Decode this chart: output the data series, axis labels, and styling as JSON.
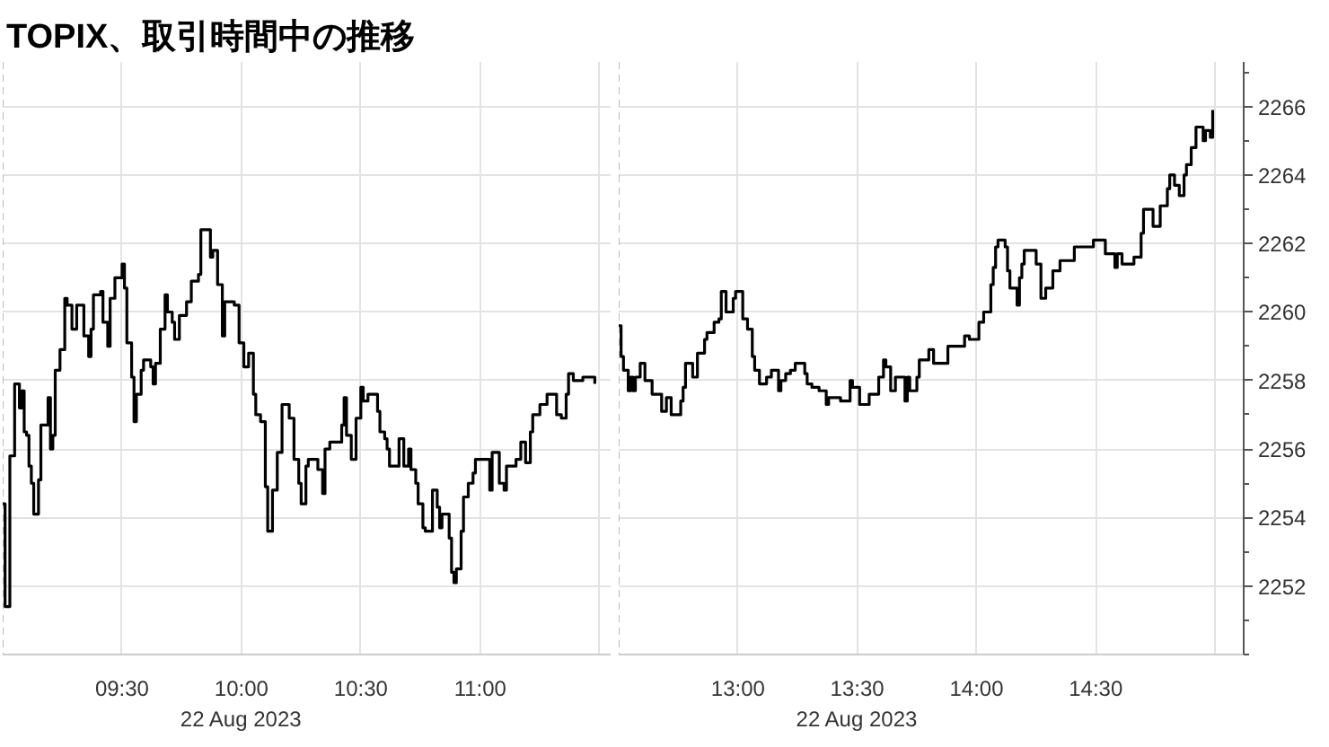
{
  "chart_data": [
    {
      "type": "step",
      "title": "TOPIX、取引時間中の推移",
      "color": "#000000",
      "x": [
        9.0,
        9.01,
        9.03,
        9.05,
        9.07,
        9.08,
        9.09,
        9.1,
        9.11,
        9.12,
        9.13,
        9.15,
        9.16,
        9.19,
        9.2,
        9.21,
        9.22,
        9.24,
        9.26,
        9.27,
        9.29,
        9.31,
        9.34,
        9.36,
        9.37,
        9.38,
        9.41,
        9.42,
        9.44,
        9.45,
        9.47,
        9.5,
        9.51,
        9.52,
        9.54,
        9.55,
        9.56,
        9.58,
        9.59,
        9.62,
        9.63,
        9.64,
        9.66,
        9.68,
        9.69,
        9.71,
        9.72,
        9.74,
        9.77,
        9.79,
        9.82,
        9.83,
        9.87,
        9.88,
        9.9,
        9.92,
        9.93,
        9.97,
        9.99,
        10.01,
        10.03,
        10.05,
        10.06,
        10.08,
        10.1,
        10.11,
        10.13,
        10.15,
        10.17,
        10.2,
        10.22,
        10.24,
        10.25,
        10.27,
        10.28,
        10.32,
        10.34,
        10.35,
        10.37,
        10.42,
        10.43,
        10.44,
        10.46,
        10.48,
        10.5,
        10.51,
        10.53,
        10.57,
        10.58,
        10.6,
        10.61,
        10.62,
        10.66,
        10.68,
        10.7,
        10.71,
        10.73,
        10.74,
        10.76,
        10.77,
        10.8,
        10.82,
        10.83,
        10.84,
        10.87,
        10.88,
        10.89,
        10.9,
        10.92,
        10.93,
        10.95,
        10.97,
        10.98,
        11.04,
        11.05,
        11.08,
        11.1,
        11.11,
        11.15,
        11.17,
        11.19,
        11.21,
        11.22,
        11.25,
        11.28,
        11.32,
        11.34,
        11.36,
        11.37,
        11.39,
        11.43,
        11.48
      ],
      "values": [
        2254.4,
        2251.4,
        2255.8,
        2257.9,
        2257.2,
        2257.7,
        2256.5,
        2256.4,
        2255.5,
        2255.0,
        2254.1,
        2255.1,
        2256.7,
        2257.5,
        2256.0,
        2256.4,
        2258.3,
        2258.9,
        2260.4,
        2260.2,
        2259.5,
        2260.2,
        2259.3,
        2258.7,
        2259.5,
        2260.5,
        2260.6,
        2259.7,
        2259.0,
        2260.4,
        2261.0,
        2261.4,
        2260.7,
        2259.1,
        2258.1,
        2256.8,
        2257.6,
        2258.3,
        2258.6,
        2258.4,
        2257.9,
        2258.5,
        2259.5,
        2260.5,
        2260.0,
        2259.7,
        2259.2,
        2259.9,
        2260.3,
        2260.9,
        2261.1,
        2262.4,
        2261.6,
        2261.8,
        2260.8,
        2259.3,
        2260.3,
        2260.2,
        2259.1,
        2258.4,
        2258.8,
        2257.6,
        2257.0,
        2256.8,
        2254.9,
        2253.6,
        2254.8,
        2255.9,
        2257.3,
        2256.9,
        2255.7,
        2255.0,
        2254.4,
        2255.5,
        2255.7,
        2255.4,
        2254.7,
        2256.0,
        2256.2,
        2256.7,
        2257.5,
        2256.4,
        2255.7,
        2256.9,
        2257.8,
        2257.4,
        2257.6,
        2257.1,
        2256.5,
        2256.3,
        2256.0,
        2255.5,
        2256.3,
        2255.5,
        2256.0,
        2255.4,
        2255.0,
        2254.4,
        2253.7,
        2253.6,
        2254.8,
        2254.3,
        2253.7,
        2254.1,
        2253.4,
        2252.4,
        2252.1,
        2252.5,
        2253.6,
        2254.6,
        2255.0,
        2255.3,
        2255.7,
        2254.8,
        2255.9,
        2255.0,
        2254.8,
        2255.5,
        2255.7,
        2256.2,
        2255.6,
        2256.5,
        2257.0,
        2257.3,
        2257.6,
        2257.0,
        2256.9,
        2257.6,
        2258.2,
        2258.0,
        2258.1,
        2257.9
      ],
      "xlim": [
        9,
        11.55
      ],
      "ylim": [
        2250,
        2267.3
      ],
      "xticks": [
        {
          "value": 9.5,
          "label": "09:30"
        },
        {
          "value": 10,
          "label": "10:00\n22 Aug 2023"
        },
        {
          "value": 10.5,
          "label": "10:30"
        },
        {
          "value": 11,
          "label": "11:00"
        },
        {
          "value": 11.5,
          "label": null
        }
      ],
      "yticks": [
        2252,
        2254,
        2256,
        2258,
        2260,
        2262,
        2264,
        2266
      ],
      "grid": true,
      "tick_labels": "x",
      "ref_lines": [
        {
          "axis": "x",
          "value": 9,
          "color": "#bbbbbb",
          "line_style": "dashed"
        }
      ]
    },
    {
      "type": "step",
      "color": "#000000",
      "x": [
        12.5,
        12.51,
        12.52,
        12.54,
        12.55,
        12.56,
        12.57,
        12.59,
        12.61,
        12.64,
        12.68,
        12.7,
        12.72,
        12.76,
        12.77,
        12.78,
        12.81,
        12.83,
        12.86,
        12.87,
        12.9,
        12.92,
        12.93,
        12.95,
        12.98,
        12.99,
        13.02,
        13.04,
        13.06,
        13.07,
        13.09,
        13.12,
        13.14,
        13.17,
        13.18,
        13.2,
        13.22,
        13.24,
        13.28,
        13.29,
        13.31,
        13.34,
        13.37,
        13.38,
        13.43,
        13.47,
        13.48,
        13.51,
        13.55,
        13.59,
        13.61,
        13.62,
        13.64,
        13.66,
        13.7,
        13.71,
        13.72,
        13.75,
        13.76,
        13.8,
        13.82,
        13.88,
        13.95,
        13.97,
        14.01,
        14.03,
        14.06,
        14.07,
        14.08,
        14.09,
        14.12,
        14.13,
        14.14,
        14.17,
        14.18,
        14.19,
        14.2,
        14.25,
        14.27,
        14.29,
        14.32,
        14.35,
        14.41,
        14.49,
        14.54,
        14.58,
        14.59,
        14.61,
        14.66,
        14.69,
        14.7,
        14.74,
        14.77,
        14.8,
        14.81,
        14.83,
        14.85,
        14.87,
        14.88,
        14.9,
        14.92,
        14.95,
        14.96,
        14.98,
        14.99
      ],
      "values": [
        2259.6,
        2258.7,
        2258.3,
        2257.7,
        2258.1,
        2257.7,
        2258.1,
        2258.5,
        2258.0,
        2257.6,
        2257.1,
        2257.5,
        2257.0,
        2257.4,
        2257.8,
        2258.5,
        2258.1,
        2258.8,
        2259.2,
        2259.4,
        2259.7,
        2259.8,
        2260.6,
        2260.0,
        2260.4,
        2260.6,
        2259.8,
        2259.5,
        2258.7,
        2258.3,
        2257.9,
        2258.1,
        2258.3,
        2257.7,
        2258.0,
        2258.2,
        2258.3,
        2258.5,
        2258.2,
        2257.9,
        2257.8,
        2257.7,
        2257.3,
        2257.5,
        2257.4,
        2258.0,
        2257.8,
        2257.3,
        2257.6,
        2258.1,
        2258.6,
        2258.4,
        2257.7,
        2258.1,
        2257.4,
        2258.1,
        2257.7,
        2258.1,
        2258.6,
        2258.9,
        2258.5,
        2259.0,
        2259.3,
        2259.2,
        2259.7,
        2260.0,
        2260.8,
        2261.3,
        2261.9,
        2262.1,
        2261.9,
        2261.2,
        2260.7,
        2260.2,
        2261.0,
        2261.4,
        2261.8,
        2261.4,
        2260.4,
        2260.7,
        2261.2,
        2261.5,
        2261.9,
        2262.1,
        2261.7,
        2261.3,
        2261.7,
        2261.4,
        2261.6,
        2262.3,
        2263.0,
        2262.5,
        2263.1,
        2263.6,
        2264.0,
        2263.7,
        2263.4,
        2264.0,
        2264.3,
        2264.8,
        2265.4,
        2265.0,
        2265.3,
        2265.1,
        2265.9
      ],
      "xlim": [
        12.5,
        15.12
      ],
      "ylim": [
        2250,
        2267.3
      ],
      "xticks": [
        {
          "value": 13,
          "label": "13:00"
        },
        {
          "value": 13.5,
          "label": "13:30\n22 Aug 2023"
        },
        {
          "value": 14,
          "label": "14:00"
        },
        {
          "value": 14.5,
          "label": "14:30"
        },
        {
          "value": 15,
          "label": null
        }
      ],
      "yticks": [
        2252,
        2254,
        2256,
        2258,
        2260,
        2262,
        2264,
        2266
      ],
      "grid": true,
      "ref_lines": [
        {
          "axis": "x",
          "value": 12.5,
          "color": "#bbbbbb",
          "line_style": "dashed"
        }
      ]
    }
  ]
}
